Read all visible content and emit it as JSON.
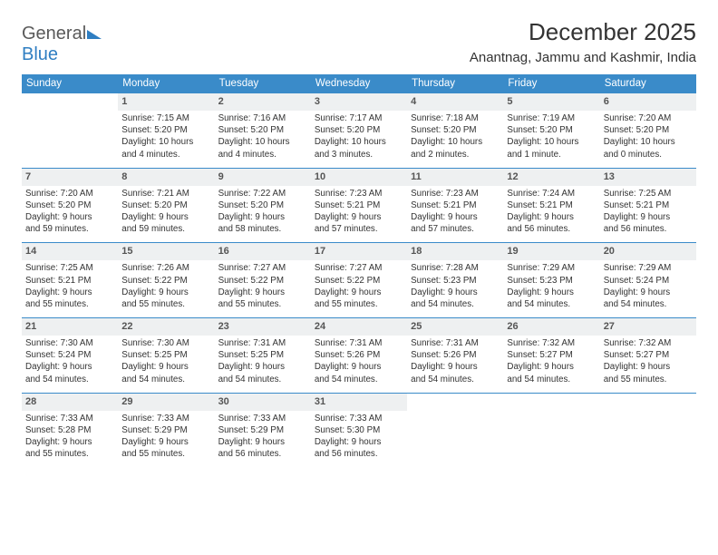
{
  "logo": {
    "word1": "General",
    "word2": "Blue"
  },
  "title": "December 2025",
  "location": "Anantnag, Jammu and Kashmir, India",
  "colors": {
    "header_bg": "#3a8bc9",
    "header_text": "#ffffff",
    "daynum_bg": "#eef0f1",
    "row_border": "#3a8bc9",
    "logo_gray": "#5a5a5a",
    "logo_blue": "#2f7ec2"
  },
  "day_headers": [
    "Sunday",
    "Monday",
    "Tuesday",
    "Wednesday",
    "Thursday",
    "Friday",
    "Saturday"
  ],
  "weeks": [
    [
      null,
      {
        "n": "1",
        "sr": "Sunrise: 7:15 AM",
        "ss": "Sunset: 5:20 PM",
        "d1": "Daylight: 10 hours",
        "d2": "and 4 minutes."
      },
      {
        "n": "2",
        "sr": "Sunrise: 7:16 AM",
        "ss": "Sunset: 5:20 PM",
        "d1": "Daylight: 10 hours",
        "d2": "and 4 minutes."
      },
      {
        "n": "3",
        "sr": "Sunrise: 7:17 AM",
        "ss": "Sunset: 5:20 PM",
        "d1": "Daylight: 10 hours",
        "d2": "and 3 minutes."
      },
      {
        "n": "4",
        "sr": "Sunrise: 7:18 AM",
        "ss": "Sunset: 5:20 PM",
        "d1": "Daylight: 10 hours",
        "d2": "and 2 minutes."
      },
      {
        "n": "5",
        "sr": "Sunrise: 7:19 AM",
        "ss": "Sunset: 5:20 PM",
        "d1": "Daylight: 10 hours",
        "d2": "and 1 minute."
      },
      {
        "n": "6",
        "sr": "Sunrise: 7:20 AM",
        "ss": "Sunset: 5:20 PM",
        "d1": "Daylight: 10 hours",
        "d2": "and 0 minutes."
      }
    ],
    [
      {
        "n": "7",
        "sr": "Sunrise: 7:20 AM",
        "ss": "Sunset: 5:20 PM",
        "d1": "Daylight: 9 hours",
        "d2": "and 59 minutes."
      },
      {
        "n": "8",
        "sr": "Sunrise: 7:21 AM",
        "ss": "Sunset: 5:20 PM",
        "d1": "Daylight: 9 hours",
        "d2": "and 59 minutes."
      },
      {
        "n": "9",
        "sr": "Sunrise: 7:22 AM",
        "ss": "Sunset: 5:20 PM",
        "d1": "Daylight: 9 hours",
        "d2": "and 58 minutes."
      },
      {
        "n": "10",
        "sr": "Sunrise: 7:23 AM",
        "ss": "Sunset: 5:21 PM",
        "d1": "Daylight: 9 hours",
        "d2": "and 57 minutes."
      },
      {
        "n": "11",
        "sr": "Sunrise: 7:23 AM",
        "ss": "Sunset: 5:21 PM",
        "d1": "Daylight: 9 hours",
        "d2": "and 57 minutes."
      },
      {
        "n": "12",
        "sr": "Sunrise: 7:24 AM",
        "ss": "Sunset: 5:21 PM",
        "d1": "Daylight: 9 hours",
        "d2": "and 56 minutes."
      },
      {
        "n": "13",
        "sr": "Sunrise: 7:25 AM",
        "ss": "Sunset: 5:21 PM",
        "d1": "Daylight: 9 hours",
        "d2": "and 56 minutes."
      }
    ],
    [
      {
        "n": "14",
        "sr": "Sunrise: 7:25 AM",
        "ss": "Sunset: 5:21 PM",
        "d1": "Daylight: 9 hours",
        "d2": "and 55 minutes."
      },
      {
        "n": "15",
        "sr": "Sunrise: 7:26 AM",
        "ss": "Sunset: 5:22 PM",
        "d1": "Daylight: 9 hours",
        "d2": "and 55 minutes."
      },
      {
        "n": "16",
        "sr": "Sunrise: 7:27 AM",
        "ss": "Sunset: 5:22 PM",
        "d1": "Daylight: 9 hours",
        "d2": "and 55 minutes."
      },
      {
        "n": "17",
        "sr": "Sunrise: 7:27 AM",
        "ss": "Sunset: 5:22 PM",
        "d1": "Daylight: 9 hours",
        "d2": "and 55 minutes."
      },
      {
        "n": "18",
        "sr": "Sunrise: 7:28 AM",
        "ss": "Sunset: 5:23 PM",
        "d1": "Daylight: 9 hours",
        "d2": "and 54 minutes."
      },
      {
        "n": "19",
        "sr": "Sunrise: 7:29 AM",
        "ss": "Sunset: 5:23 PM",
        "d1": "Daylight: 9 hours",
        "d2": "and 54 minutes."
      },
      {
        "n": "20",
        "sr": "Sunrise: 7:29 AM",
        "ss": "Sunset: 5:24 PM",
        "d1": "Daylight: 9 hours",
        "d2": "and 54 minutes."
      }
    ],
    [
      {
        "n": "21",
        "sr": "Sunrise: 7:30 AM",
        "ss": "Sunset: 5:24 PM",
        "d1": "Daylight: 9 hours",
        "d2": "and 54 minutes."
      },
      {
        "n": "22",
        "sr": "Sunrise: 7:30 AM",
        "ss": "Sunset: 5:25 PM",
        "d1": "Daylight: 9 hours",
        "d2": "and 54 minutes."
      },
      {
        "n": "23",
        "sr": "Sunrise: 7:31 AM",
        "ss": "Sunset: 5:25 PM",
        "d1": "Daylight: 9 hours",
        "d2": "and 54 minutes."
      },
      {
        "n": "24",
        "sr": "Sunrise: 7:31 AM",
        "ss": "Sunset: 5:26 PM",
        "d1": "Daylight: 9 hours",
        "d2": "and 54 minutes."
      },
      {
        "n": "25",
        "sr": "Sunrise: 7:31 AM",
        "ss": "Sunset: 5:26 PM",
        "d1": "Daylight: 9 hours",
        "d2": "and 54 minutes."
      },
      {
        "n": "26",
        "sr": "Sunrise: 7:32 AM",
        "ss": "Sunset: 5:27 PM",
        "d1": "Daylight: 9 hours",
        "d2": "and 54 minutes."
      },
      {
        "n": "27",
        "sr": "Sunrise: 7:32 AM",
        "ss": "Sunset: 5:27 PM",
        "d1": "Daylight: 9 hours",
        "d2": "and 55 minutes."
      }
    ],
    [
      {
        "n": "28",
        "sr": "Sunrise: 7:33 AM",
        "ss": "Sunset: 5:28 PM",
        "d1": "Daylight: 9 hours",
        "d2": "and 55 minutes."
      },
      {
        "n": "29",
        "sr": "Sunrise: 7:33 AM",
        "ss": "Sunset: 5:29 PM",
        "d1": "Daylight: 9 hours",
        "d2": "and 55 minutes."
      },
      {
        "n": "30",
        "sr": "Sunrise: 7:33 AM",
        "ss": "Sunset: 5:29 PM",
        "d1": "Daylight: 9 hours",
        "d2": "and 56 minutes."
      },
      {
        "n": "31",
        "sr": "Sunrise: 7:33 AM",
        "ss": "Sunset: 5:30 PM",
        "d1": "Daylight: 9 hours",
        "d2": "and 56 minutes."
      },
      null,
      null,
      null
    ]
  ]
}
